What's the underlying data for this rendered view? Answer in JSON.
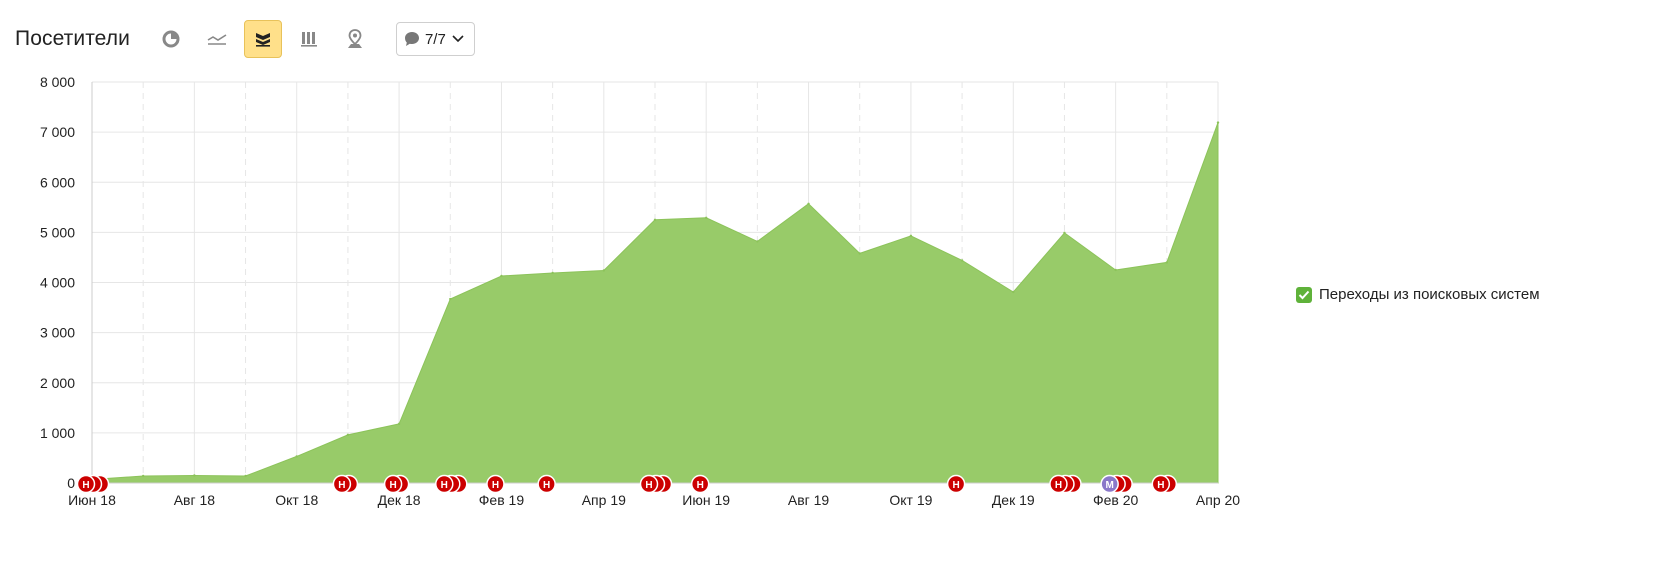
{
  "header": {
    "title": "Посетители",
    "notes_label": "7/7",
    "tools": [
      {
        "name": "pie-chart-icon",
        "active": false
      },
      {
        "name": "line-chart-icon",
        "active": false
      },
      {
        "name": "area-chart-icon",
        "active": true
      },
      {
        "name": "bar-chart-icon",
        "active": false
      },
      {
        "name": "map-icon",
        "active": false
      }
    ]
  },
  "colors": {
    "area_fill": "#98cb69",
    "area_stroke": "#8cc35a",
    "marker_red": "#cc0000",
    "marker_purple": "#8a78c9",
    "grid": "#e6e6e6",
    "checkbox": "#5fb23a",
    "active_tool": "#ffe08a"
  },
  "chart_data": {
    "type": "area",
    "ylim": [
      0,
      8000
    ],
    "yticks": [
      0,
      1000,
      2000,
      3000,
      4000,
      5000,
      6000,
      7000,
      8000
    ],
    "ytick_labels": [
      "0",
      "1 000",
      "2 000",
      "3 000",
      "4 000",
      "5 000",
      "6 000",
      "7 000",
      "8 000"
    ],
    "xtick_labels": [
      "Июн 18",
      "Авг 18",
      "Окт 18",
      "Дек 18",
      "Фев 19",
      "Апр 19",
      "Июн 19",
      "Авг 19",
      "Окт 19",
      "Дек 19",
      "Фев 20",
      "Апр 20"
    ],
    "x": [
      "2018-06",
      "2018-07",
      "2018-08",
      "2018-09",
      "2018-10",
      "2018-11",
      "2018-12",
      "2019-01",
      "2019-02",
      "2019-03",
      "2019-04",
      "2019-05",
      "2019-06",
      "2019-07",
      "2019-08",
      "2019-09",
      "2019-10",
      "2019-11",
      "2019-12",
      "2020-01",
      "2020-02",
      "2020-03",
      "2020-04"
    ],
    "series": [
      {
        "name": "Переходы из поисковых систем",
        "values": [
          70,
          140,
          150,
          140,
          530,
          960,
          1180,
          3670,
          4130,
          4190,
          4240,
          5250,
          5290,
          4820,
          5570,
          4580,
          4930,
          4440,
          3810,
          4990,
          4250,
          4400,
          7190
        ]
      }
    ],
    "grid": true,
    "legend": "right",
    "note_markers": [
      {
        "month": "2018-06",
        "letter": "Н",
        "count": 3,
        "color": "red"
      },
      {
        "month": "2018-11",
        "letter": "Н",
        "count": 2,
        "color": "red"
      },
      {
        "month": "2018-12",
        "letter": "Н",
        "count": 2,
        "color": "red"
      },
      {
        "month": "2019-01",
        "letter": "Н",
        "count": 3,
        "color": "red"
      },
      {
        "month": "2019-02",
        "letter": "Н",
        "count": 1,
        "color": "red"
      },
      {
        "month": "2019-03",
        "letter": "Н",
        "count": 1,
        "color": "red"
      },
      {
        "month": "2019-05",
        "letter": "Н",
        "count": 3,
        "color": "red"
      },
      {
        "month": "2019-06",
        "letter": "Н",
        "count": 1,
        "color": "red"
      },
      {
        "month": "2019-11",
        "letter": "Н",
        "count": 1,
        "color": "red"
      },
      {
        "month": "2020-01",
        "letter": "Н",
        "count": 3,
        "color": "red"
      },
      {
        "month": "2020-02",
        "letter": "М",
        "count": 3,
        "color": "purple"
      },
      {
        "month": "2020-03",
        "letter": "Н",
        "count": 2,
        "color": "red"
      }
    ]
  },
  "legend": {
    "label": "Переходы из поисковых систем",
    "checked": true
  }
}
